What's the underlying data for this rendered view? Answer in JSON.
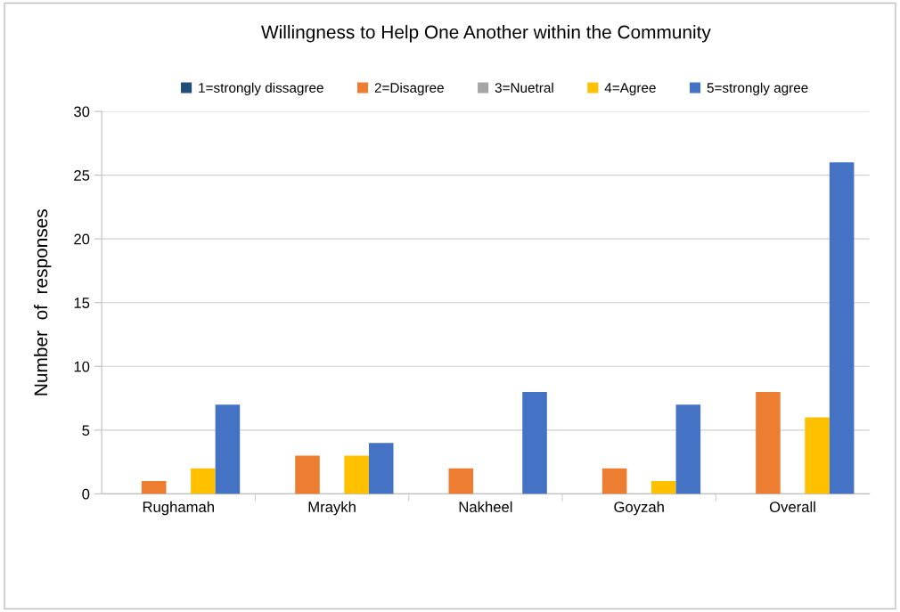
{
  "chart_data": {
    "type": "bar",
    "title": "Willingness to Help One Another within the Community",
    "ylabel": "Number  of  responses",
    "categories": [
      "Rughamah",
      "Mraykh",
      "Nakheel",
      "Goyzah",
      "Overall"
    ],
    "series": [
      {
        "name": "1=strongly dissagree",
        "color": "#1f4e79",
        "values": [
          0,
          0,
          0,
          0,
          0
        ]
      },
      {
        "name": "2=Disagree",
        "color": "#ed7d31",
        "values": [
          1,
          3,
          2,
          2,
          8
        ]
      },
      {
        "name": "3=Nuetral",
        "color": "#a5a5a5",
        "values": [
          0,
          0,
          0,
          0,
          0
        ]
      },
      {
        "name": "4=Agree",
        "color": "#ffc000",
        "values": [
          2,
          3,
          0,
          1,
          6
        ]
      },
      {
        "name": "5=strongly agree",
        "color": "#4472c4",
        "values": [
          7,
          4,
          8,
          7,
          26
        ]
      }
    ],
    "ylim": [
      0,
      30
    ],
    "yticks": [
      0,
      5,
      10,
      15,
      20,
      25,
      30
    ],
    "grid": "y",
    "legend": "top"
  }
}
